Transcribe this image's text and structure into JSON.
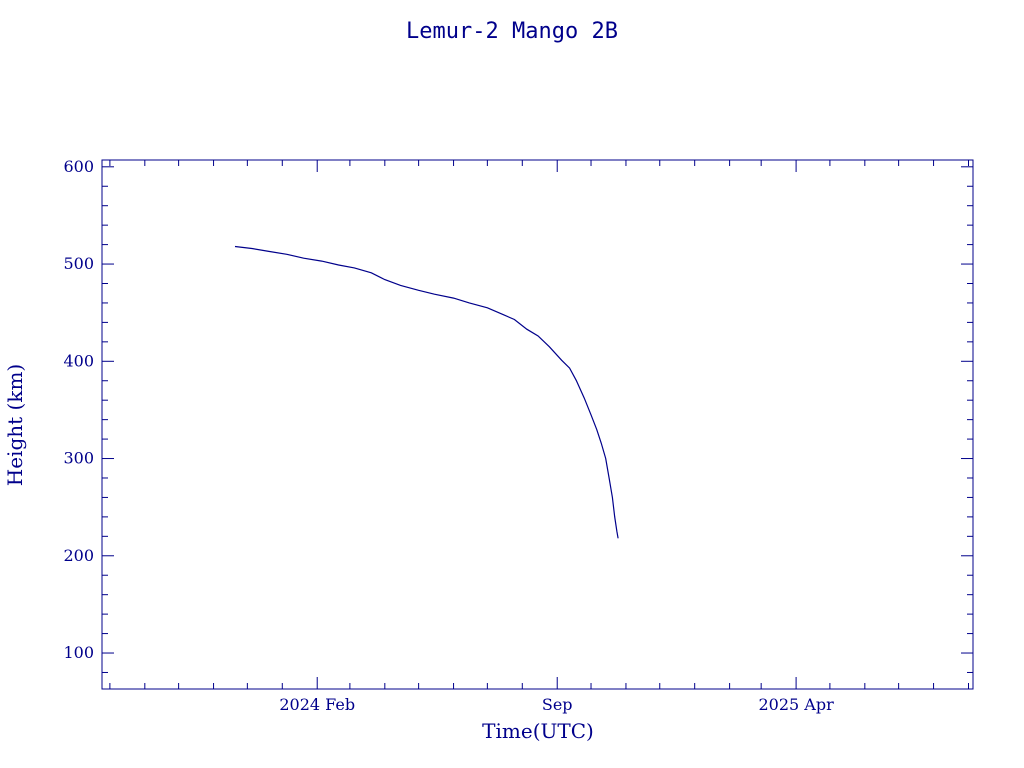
{
  "chart_data": {
    "type": "line",
    "title": "Lemur-2 Mango 2B",
    "xlabel": "Time(UTC)",
    "ylabel": "Height (km)",
    "xlim": [
      "2023-07-25",
      "2025-09-05"
    ],
    "ylim": [
      63,
      607
    ],
    "grid": false,
    "x_ticks": [
      {
        "date": "2024-02-01",
        "label": "2024 Feb"
      },
      {
        "date": "2024-09-01",
        "label": "Sep"
      },
      {
        "date": "2025-04-01",
        "label": "2025 Apr"
      }
    ],
    "y_ticks": [
      100,
      200,
      300,
      400,
      500,
      600
    ],
    "color": "#00008b",
    "series": [
      {
        "x": [
          "2023-11-20",
          "2023-12-05",
          "2023-12-20",
          "2024-01-05",
          "2024-01-20",
          "2024-02-05",
          "2024-02-20",
          "2024-03-05",
          "2024-03-20",
          "2024-04-01",
          "2024-04-15",
          "2024-05-01",
          "2024-05-15",
          "2024-06-01",
          "2024-06-15",
          "2024-07-01",
          "2024-07-15",
          "2024-07-25",
          "2024-08-05",
          "2024-08-15",
          "2024-08-25",
          "2024-09-05",
          "2024-09-12",
          "2024-09-18",
          "2024-09-25",
          "2024-10-01",
          "2024-10-06",
          "2024-10-10",
          "2024-10-14",
          "2024-10-17",
          "2024-10-20",
          "2024-10-22",
          "2024-10-24",
          "2024-10-25"
        ],
        "y": [
          518,
          516,
          513,
          510,
          506,
          503,
          499,
          496,
          491,
          484,
          478,
          473,
          469,
          465,
          460,
          455,
          448,
          443,
          433,
          426,
          415,
          401,
          393,
          380,
          362,
          345,
          330,
          316,
          300,
          280,
          260,
          240,
          225,
          218
        ]
      }
    ]
  }
}
